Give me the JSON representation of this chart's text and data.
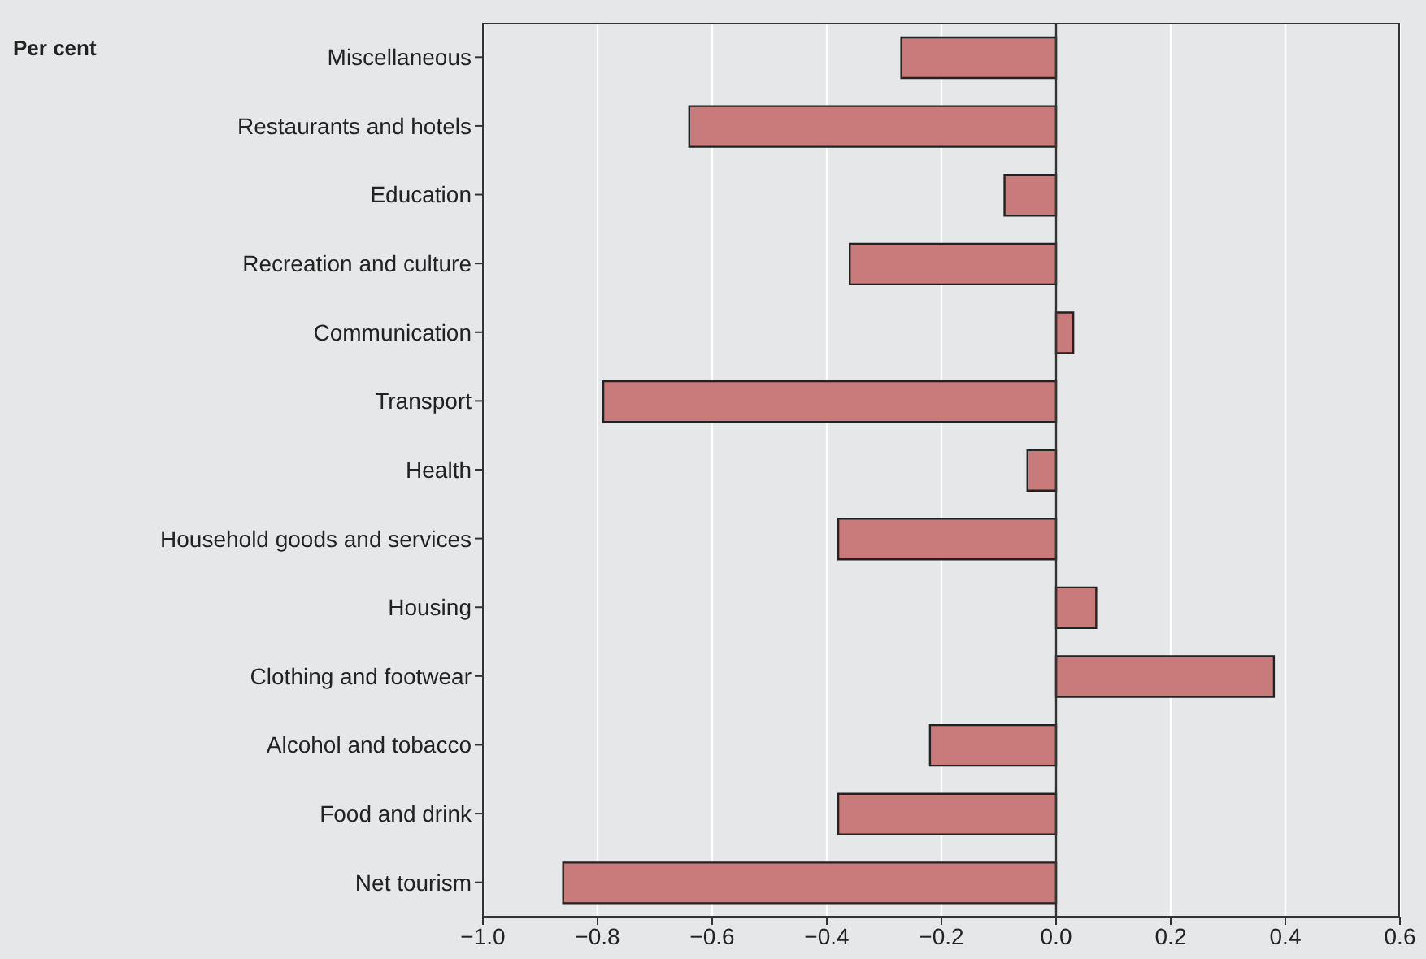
{
  "chart_data": {
    "type": "bar",
    "orientation": "horizontal",
    "xlabel": "Per cent",
    "categories": [
      "Miscellaneous",
      "Restaurants and hotels",
      "Education",
      "Recreation and culture",
      "Communication",
      "Transport",
      "Health",
      "Household goods and services",
      "Housing",
      "Clothing and footwear",
      "Alcohol and tobacco",
      "Food and drink",
      "Net tourism"
    ],
    "values": [
      -0.27,
      -0.64,
      -0.09,
      -0.36,
      0.03,
      -0.79,
      -0.05,
      -0.38,
      0.07,
      0.38,
      -0.22,
      -0.38,
      -0.86
    ],
    "color": "#c87b7a",
    "xlim": [
      -1.0,
      0.6
    ],
    "xticks": [
      {
        "value": -1.0,
        "label": "−1.0"
      },
      {
        "value": -0.8,
        "label": "−0.8"
      },
      {
        "value": -0.6,
        "label": "−0.6"
      },
      {
        "value": -0.4,
        "label": "−0.4"
      },
      {
        "value": -0.2,
        "label": "−0.2"
      },
      {
        "value": 0,
        "label": "0.0"
      },
      {
        "value": 0.2,
        "label": "0.2"
      },
      {
        "value": 0.4,
        "label": "0.4"
      },
      {
        "value": 0.6,
        "label": "0.6"
      }
    ],
    "ref_lines": [
      {
        "axis": "x",
        "value": 0,
        "color": "#333333"
      }
    ],
    "grid": "x"
  }
}
